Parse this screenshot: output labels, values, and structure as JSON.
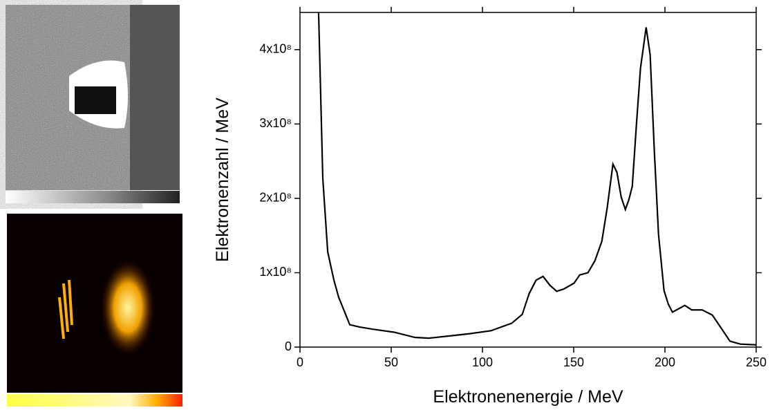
{
  "chart_data": {
    "type": "line",
    "x_label": "Elektronenenergie / MeV",
    "y_label": "Elektronenzahl / MeV",
    "x": [
      10.2,
      12.5,
      15.2,
      18.6,
      21.2,
      25,
      27.3,
      32.6,
      40,
      51.6,
      63,
      70.6,
      82,
      93,
      104.7,
      116,
      121.8,
      125.6,
      129.4,
      133.2,
      137,
      140.7,
      144.5,
      150.2,
      153.3,
      157.8,
      161.6,
      165.4,
      168.4,
      171.5,
      173.7,
      176,
      178.3,
      180.2,
      182.1,
      184.4,
      186.6,
      189.7,
      191.9,
      194.2,
      196.5,
      199.5,
      201.8,
      204.1,
      210.9,
      214.7,
      220.4,
      226,
      231.8,
      235.6,
      241.3,
      250
    ],
    "values": [
      450000000,
      227000000,
      128000000,
      90000000,
      67000000,
      44000000,
      30000000,
      27000000,
      24000000,
      20000000,
      13000000,
      12000000,
      15000000,
      18000000,
      22000000,
      32000000,
      44000000,
      72000000,
      90000000,
      95000000,
      83000000,
      75000000,
      78000000,
      86000000,
      97000000,
      100000000,
      116000000,
      142000000,
      188000000,
      246000000,
      235000000,
      202000000,
      185000000,
      198000000,
      216000000,
      300000000,
      375000000,
      430000000,
      393000000,
      263000000,
      151000000,
      76000000,
      58000000,
      47000000,
      56000000,
      50000000,
      50000000,
      43000000,
      22000000,
      8000000,
      4000000,
      3000000
    ],
    "color": "#000000",
    "xlim": [
      0,
      250
    ],
    "xticks": [
      0,
      50,
      100,
      150,
      200,
      250
    ],
    "ylim": [
      0,
      450000000
    ],
    "yticks": [
      0,
      {
        "value": 100000000,
        "label": "1x10⁸"
      },
      {
        "value": 200000000,
        "label": "2x10⁸"
      },
      {
        "value": 300000000,
        "label": "3x10⁸"
      },
      {
        "value": 400000000,
        "label": "4x10⁸"
      }
    ]
  }
}
